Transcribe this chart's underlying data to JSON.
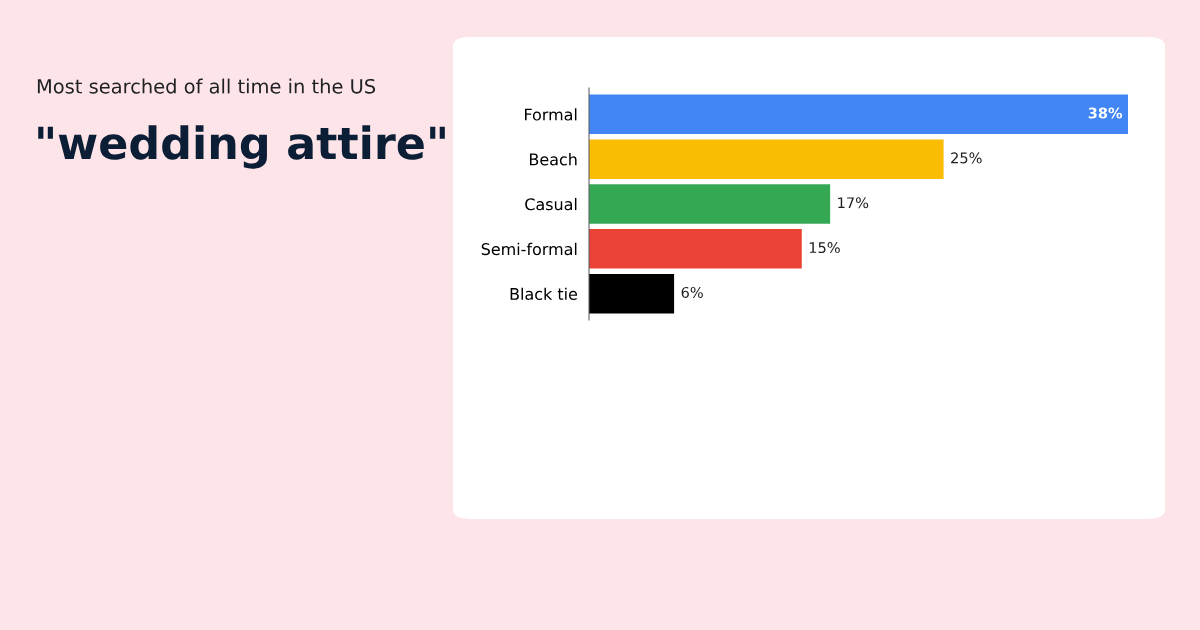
{
  "chart_data": {
    "type": "bar",
    "orientation": "horizontal",
    "subtitle": "Most searched of all time in the US",
    "title": "\"wedding attire\"",
    "categories": [
      "Formal",
      "Beach",
      "Casual",
      "Semi-formal",
      "Black tie"
    ],
    "values": [
      38,
      25,
      17,
      15,
      6
    ],
    "colors": [
      "#4285f4",
      "#fbbc04",
      "#34a853",
      "#ea4335",
      "#000000"
    ],
    "value_labels": [
      "38%",
      "25%",
      "17%",
      "15%",
      "6%"
    ],
    "grid": false,
    "legend": false
  }
}
